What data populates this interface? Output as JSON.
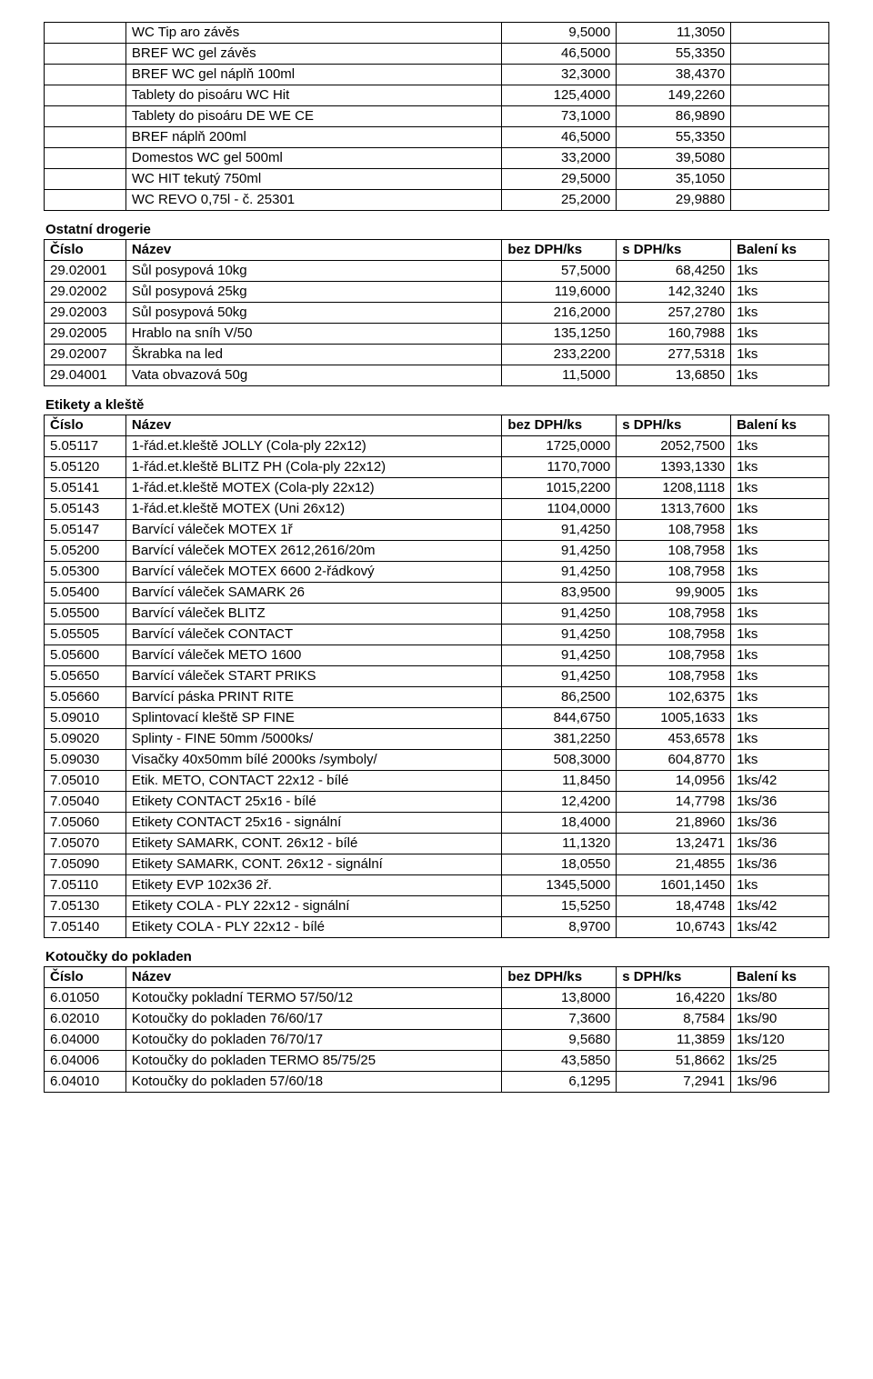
{
  "headers": {
    "cislo": "Číslo",
    "nazev": "Název",
    "bez": "bez DPH/ks",
    "sdph": "s DPH/ks",
    "baleni": "Balení ks"
  },
  "top_table": {
    "rows": [
      [
        "",
        "WC Tip aro závěs",
        "9,5000",
        "11,3050",
        ""
      ],
      [
        "",
        "BREF WC gel závěs",
        "46,5000",
        "55,3350",
        ""
      ],
      [
        "",
        "BREF WC gel náplň 100ml",
        "32,3000",
        "38,4370",
        ""
      ],
      [
        "",
        "Tablety do pisoáru WC Hit",
        "125,4000",
        "149,2260",
        ""
      ],
      [
        "",
        "Tablety do pisoáru DE WE CE",
        "73,1000",
        "86,9890",
        ""
      ],
      [
        "",
        "BREF náplň 200ml",
        "46,5000",
        "55,3350",
        ""
      ],
      [
        "",
        "Domestos WC gel  500ml",
        "33,2000",
        "39,5080",
        ""
      ],
      [
        "",
        "WC HIT tekutý  750ml",
        "29,5000",
        "35,1050",
        ""
      ],
      [
        "",
        "WC REVO  0,75l  - č. 25301",
        "25,2000",
        "29,9880",
        ""
      ]
    ]
  },
  "sections": [
    {
      "title": "Ostatní drogerie",
      "rows": [
        [
          "29.02001",
          "Sůl posypová  10kg",
          "57,5000",
          "68,4250",
          "1ks"
        ],
        [
          "29.02002",
          "Sůl posypová  25kg",
          "119,6000",
          "142,3240",
          "1ks"
        ],
        [
          "29.02003",
          "Sůl posypová  50kg",
          "216,2000",
          "257,2780",
          "1ks"
        ],
        [
          "29.02005",
          "Hrablo na sníh   V/50",
          "135,1250",
          "160,7988",
          "1ks"
        ],
        [
          "29.02007",
          "Škrabka na led",
          "233,2200",
          "277,5318",
          "1ks"
        ],
        [
          "29.04001",
          "Vata obvazová  50g",
          "11,5000",
          "13,6850",
          "1ks"
        ]
      ]
    },
    {
      "title": "Etikety a kleště",
      "rows": [
        [
          "5.05117",
          "1-řád.et.kleště JOLLY (Cola-ply 22x12)",
          "1725,0000",
          "2052,7500",
          "1ks"
        ],
        [
          "5.05120",
          "1-řád.et.kleště BLITZ PH (Cola-ply 22x12)",
          "1170,7000",
          "1393,1330",
          "1ks"
        ],
        [
          "5.05141",
          "1-řád.et.kleště MOTEX (Cola-ply 22x12)",
          "1015,2200",
          "1208,1118",
          "1ks"
        ],
        [
          "5.05143",
          "1-řád.et.kleště MOTEX (Uni 26x12)",
          "1104,0000",
          "1313,7600",
          "1ks"
        ],
        [
          "5.05147",
          "Barvící váleček MOTEX 1ř",
          "91,4250",
          "108,7958",
          "1ks"
        ],
        [
          "5.05200",
          "Barvící váleček MOTEX 2612,2616/20m",
          "91,4250",
          "108,7958",
          "1ks"
        ],
        [
          "5.05300",
          "Barvící váleček MOTEX 6600  2-řádkový",
          "91,4250",
          "108,7958",
          "1ks"
        ],
        [
          "5.05400",
          "Barvící váleček SAMARK 26",
          "83,9500",
          "99,9005",
          "1ks"
        ],
        [
          "5.05500",
          "Barvící váleček BLITZ",
          "91,4250",
          "108,7958",
          "1ks"
        ],
        [
          "5.05505",
          "Barvící váleček CONTACT",
          "91,4250",
          "108,7958",
          "1ks"
        ],
        [
          "5.05600",
          "Barvící váleček METO 1600",
          "91,4250",
          "108,7958",
          "1ks"
        ],
        [
          "5.05650",
          "Barvící váleček START PRIKS",
          "91,4250",
          "108,7958",
          "1ks"
        ],
        [
          "5.05660",
          "Barvící páska PRINT RITE",
          "86,2500",
          "102,6375",
          "1ks"
        ],
        [
          "5.09010",
          "Splintovací kleště SP FINE",
          "844,6750",
          "1005,1633",
          "1ks"
        ],
        [
          "5.09020",
          "Splinty - FINE  50mm  /5000ks/",
          "381,2250",
          "453,6578",
          "1ks"
        ],
        [
          "5.09030",
          "Visačky  40x50mm bílé  2000ks  /symboly/",
          "508,3000",
          "604,8770",
          "1ks"
        ],
        [
          "7.05010",
          "Etik.  METO, CONTACT  22x12 - bílé",
          "11,8450",
          "14,0956",
          "1ks/42"
        ],
        [
          "7.05040",
          "Etikety CONTACT  25x16 - bílé",
          "12,4200",
          "14,7798",
          "1ks/36"
        ],
        [
          "7.05060",
          "Etikety CONTACT  25x16 - signální",
          "18,4000",
          "21,8960",
          "1ks/36"
        ],
        [
          "7.05070",
          "Etikety SAMARK, CONT.   26x12 - bílé",
          "11,1320",
          "13,2471",
          "1ks/36"
        ],
        [
          "7.05090",
          "Etikety SAMARK, CONT.   26x12 - signální",
          "18,0550",
          "21,4855",
          "1ks/36"
        ],
        [
          "7.05110",
          "Etikety EVP   102x36   2ř.",
          "1345,5000",
          "1601,1450",
          "1ks"
        ],
        [
          "7.05130",
          "Etikety COLA - PLY  22x12 - signální",
          "15,5250",
          "18,4748",
          "1ks/42"
        ],
        [
          "7.05140",
          "Etikety COLA - PLY    22x12 - bílé",
          "8,9700",
          "10,6743",
          "1ks/42"
        ]
      ]
    },
    {
      "title": "Kotoučky do pokladen",
      "rows": [
        [
          "6.01050",
          "Kotoučky pokladní TERMO  57/50/12",
          "13,8000",
          "16,4220",
          "1ks/80"
        ],
        [
          "6.02010",
          "Kotoučky do pokladen  76/60/17",
          "7,3600",
          "8,7584",
          "1ks/90"
        ],
        [
          "6.04000",
          "Kotoučky do pokladen  76/70/17",
          "9,5680",
          "11,3859",
          "1ks/120"
        ],
        [
          "6.04006",
          "Kotoučky do pokladen TERMO  85/75/25",
          "43,5850",
          "51,8662",
          "1ks/25"
        ],
        [
          "6.04010",
          "Kotoučky do pokladen  57/60/18",
          "6,1295",
          "7,2941",
          "1ks/96"
        ]
      ]
    }
  ]
}
